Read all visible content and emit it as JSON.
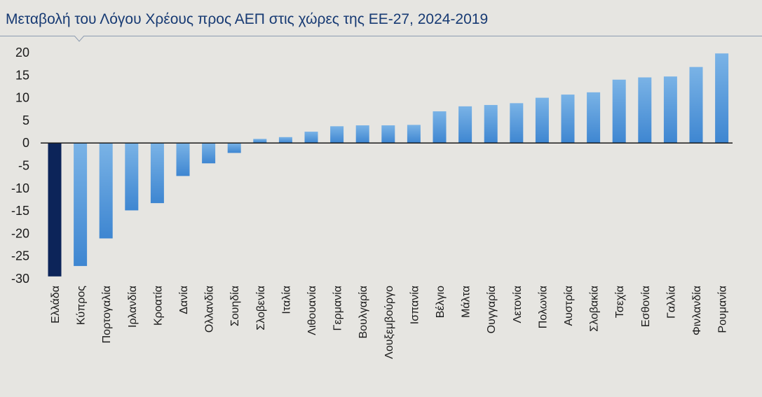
{
  "title": "Μεταβολή του Λόγου Χρέους προς ΑΕΠ στις χώρες της ΕΕ-27, 2024-2019",
  "colors": {
    "background": "#e6e5e1",
    "title": "#173a73",
    "highlight_bar": "#0c2459",
    "bar_top": "#7ab3e6",
    "bar_bottom": "#3e86d1"
  },
  "chart_data": {
    "type": "bar",
    "title": "Μεταβολή του Λόγου Χρέους προς ΑΕΠ στις χώρες της ΕΕ-27, 2024-2019",
    "xlabel": "",
    "ylabel": "",
    "ylim": [
      -30,
      20
    ],
    "yticks": [
      20,
      15,
      10,
      5,
      0,
      -5,
      -10,
      -15,
      -20,
      -25,
      -30
    ],
    "grid": false,
    "legend": "none",
    "highlighted_category": "Ελλάδα",
    "categories": [
      "Ελλάδα",
      "Κύπρος",
      "Πορτογαλία",
      "Ιρλανδία",
      "Κροατία",
      "Δανία",
      "Ολλανδία",
      "Σουηδία",
      "Σλοβενία",
      "Ιταλία",
      "Λιθουανία",
      "Γερμανία",
      "Βουλγαρία",
      "Λουξεμβούργο",
      "Ισπανία",
      "Βέλγιο",
      "Μάλτα",
      "Ουγγαρία",
      "Λετονία",
      "Πολωνία",
      "Αυστρία",
      "Σλοβακία",
      "Τσεχία",
      "Εσθονία",
      "Γαλλία",
      "Φινλανδία",
      "Ρουμανία"
    ],
    "values": [
      -29.5,
      -27.2,
      -21.1,
      -14.9,
      -13.3,
      -7.3,
      -4.5,
      -2.2,
      0.9,
      1.3,
      2.5,
      3.7,
      3.9,
      3.9,
      4.0,
      7.0,
      8.1,
      8.4,
      8.8,
      10.0,
      10.7,
      11.2,
      14.0,
      14.5,
      14.7,
      16.8,
      19.8
    ]
  }
}
